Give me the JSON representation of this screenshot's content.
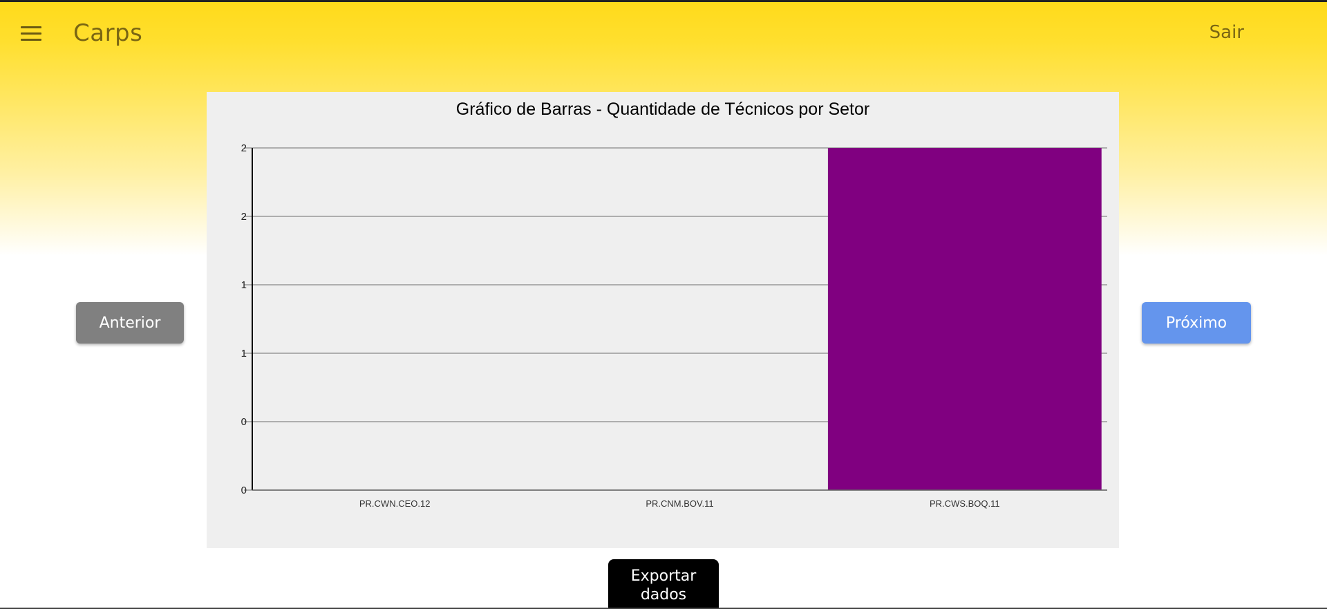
{
  "header": {
    "app_title": "Carps",
    "logout_label": "Sair",
    "menu_icon": "hamburger-menu-icon"
  },
  "navigation": {
    "prev_label": "Anterior",
    "next_label": "Próximo"
  },
  "export": {
    "label_line1": "Exportar",
    "label_line2": "dados"
  },
  "colors": {
    "header_yellow": "#ffda1a",
    "bar": "#800080",
    "prev_button": "#808080",
    "next_button": "#6495ed",
    "chart_background": "#efefef"
  },
  "chart_data": {
    "type": "bar",
    "title": "Gráfico de Barras - Quantidade de Técnicos por Setor",
    "categories": [
      "PR.CWN.CEO.12",
      "PR.CNM.BOV.11",
      "PR.CWS.BOQ.11"
    ],
    "values": [
      0,
      0,
      2
    ],
    "xlabel": "",
    "ylabel": "",
    "ylim": [
      0,
      2
    ],
    "y_tick_values": [
      0,
      0.4,
      0.8,
      1.2,
      1.6,
      2
    ],
    "y_tick_labels": [
      "0",
      "0",
      "1",
      "1",
      "2",
      "2"
    ],
    "grid": true,
    "legend": "none"
  }
}
